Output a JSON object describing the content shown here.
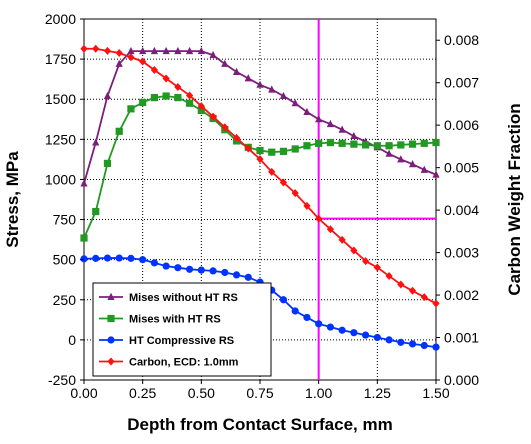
{
  "chart_data": {
    "type": "line",
    "xlabel": "Depth from Contact Surface, mm",
    "ylabel_left": "Stress, MPa",
    "ylabel_right": "Carbon Weight Fraction",
    "xlim": [
      0,
      1.5
    ],
    "ylim_left": [
      -250,
      2000
    ],
    "ylim_right": [
      0,
      0.0085
    ],
    "x_ticks": [
      "0.00",
      "0.25",
      "0.50",
      "0.75",
      "1.00",
      "1.25",
      "1.50"
    ],
    "y_left_ticks": [
      "-250",
      "0",
      "250",
      "500",
      "750",
      "1000",
      "1250",
      "1500",
      "1750",
      "2000"
    ],
    "y_right_ticks": [
      "0.000",
      "0.001",
      "0.002",
      "0.003",
      "0.004",
      "0.005",
      "0.006",
      "0.007",
      "0.008"
    ],
    "grid": true,
    "legend_position": "bottom-left",
    "series": [
      {
        "name": "Mises without HT RS",
        "color": "#7b1f7b",
        "marker": "triangle",
        "axis": "left",
        "x": [
          0.0,
          0.05,
          0.1,
          0.15,
          0.2,
          0.25,
          0.3,
          0.35,
          0.4,
          0.45,
          0.5,
          0.55,
          0.6,
          0.65,
          0.7,
          0.75,
          0.8,
          0.85,
          0.9,
          0.95,
          1.0,
          1.05,
          1.1,
          1.15,
          1.2,
          1.25,
          1.3,
          1.35,
          1.4,
          1.45,
          1.5
        ],
        "y": [
          975,
          1230,
          1520,
          1720,
          1800,
          1800,
          1800,
          1800,
          1800,
          1800,
          1800,
          1775,
          1720,
          1670,
          1630,
          1590,
          1560,
          1520,
          1475,
          1420,
          1375,
          1345,
          1310,
          1270,
          1235,
          1200,
          1160,
          1125,
          1095,
          1060,
          1030
        ]
      },
      {
        "name": "Mises with HT RS",
        "color": "#229922",
        "marker": "square",
        "axis": "left",
        "x": [
          0.0,
          0.05,
          0.1,
          0.15,
          0.2,
          0.25,
          0.3,
          0.35,
          0.4,
          0.45,
          0.5,
          0.55,
          0.6,
          0.65,
          0.7,
          0.75,
          0.8,
          0.85,
          0.9,
          0.95,
          1.0,
          1.05,
          1.1,
          1.15,
          1.2,
          1.25,
          1.3,
          1.35,
          1.4,
          1.45,
          1.5
        ],
        "y": [
          635,
          800,
          1100,
          1300,
          1440,
          1480,
          1510,
          1520,
          1510,
          1475,
          1430,
          1380,
          1310,
          1240,
          1200,
          1180,
          1170,
          1175,
          1190,
          1210,
          1225,
          1230,
          1225,
          1220,
          1215,
          1210,
          1210,
          1215,
          1220,
          1225,
          1230
        ]
      },
      {
        "name": "HT Compressive RS",
        "color": "#0033ff",
        "marker": "circle",
        "axis": "left",
        "x": [
          0.0,
          0.05,
          0.1,
          0.15,
          0.2,
          0.25,
          0.3,
          0.35,
          0.4,
          0.45,
          0.5,
          0.55,
          0.6,
          0.65,
          0.7,
          0.75,
          0.8,
          0.85,
          0.9,
          0.95,
          1.0,
          1.05,
          1.1,
          1.15,
          1.2,
          1.25,
          1.3,
          1.35,
          1.4,
          1.45,
          1.5
        ],
        "y": [
          505,
          508,
          510,
          510,
          508,
          500,
          480,
          460,
          450,
          440,
          435,
          430,
          420,
          405,
          390,
          360,
          310,
          250,
          180,
          140,
          100,
          80,
          60,
          45,
          30,
          15,
          0,
          -15,
          -25,
          -35,
          -45
        ]
      },
      {
        "name": "Carbon, ECD: 1.0mm",
        "color": "#ff1111",
        "marker": "diamond",
        "axis": "right",
        "x": [
          0.0,
          0.05,
          0.1,
          0.15,
          0.2,
          0.25,
          0.3,
          0.35,
          0.4,
          0.45,
          0.5,
          0.55,
          0.6,
          0.65,
          0.7,
          0.75,
          0.8,
          0.85,
          0.9,
          0.95,
          1.0,
          1.05,
          1.1,
          1.15,
          1.2,
          1.25,
          1.3,
          1.35,
          1.4,
          1.45,
          1.5
        ],
        "y": [
          0.0078,
          0.0078,
          0.00775,
          0.0077,
          0.0076,
          0.0075,
          0.0073,
          0.0071,
          0.0069,
          0.0067,
          0.00645,
          0.0062,
          0.00595,
          0.0057,
          0.00545,
          0.0052,
          0.0049,
          0.00465,
          0.0044,
          0.0041,
          0.0038,
          0.00355,
          0.0033,
          0.00305,
          0.0028,
          0.00265,
          0.00245,
          0.00225,
          0.0021,
          0.00195,
          0.0018
        ]
      }
    ],
    "reference_lines": {
      "color": "#ff00ff",
      "vertical_x": 1.0,
      "horizontal_y_right": 0.0038
    }
  }
}
